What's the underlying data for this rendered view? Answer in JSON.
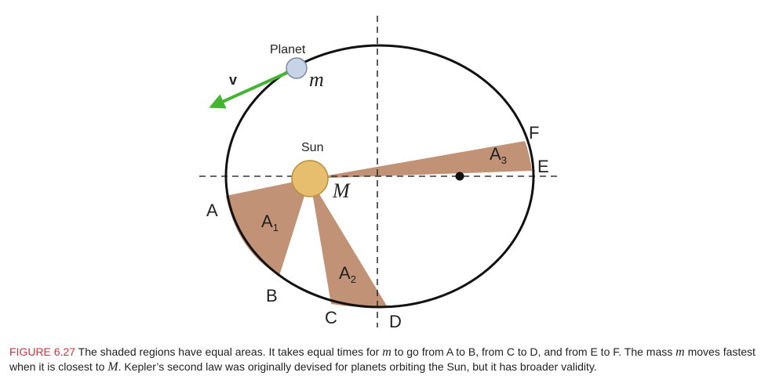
{
  "diagram": {
    "labels": {
      "planet": "Planet",
      "sun": "Sun",
      "velocity": "v",
      "mass_small": "m",
      "mass_large": "M",
      "points": {
        "a": "A",
        "b": "B",
        "c": "C",
        "d": "D",
        "e": "E",
        "f": "F"
      },
      "areas": {
        "a1": {
          "base": "A",
          "sub": "1"
        },
        "a2": {
          "base": "A",
          "sub": "2"
        },
        "a3": {
          "base": "A",
          "sub": "3"
        }
      }
    },
    "colors": {
      "orbit": "#111111",
      "shaded_region": "#c19276",
      "sun_fill": "#e6be6e",
      "sun_stroke": "#b8913a",
      "planet_fill": "#c7d3e6",
      "planet_stroke": "#7c8aa0",
      "velocity_arrow": "#45b433",
      "axis_dashes": "#333333"
    }
  },
  "caption": {
    "figure_label": "FIGURE 6.27",
    "text_1": " The shaded regions have equal areas. It takes equal times for ",
    "m1": "m",
    "text_2": " to go from A to B, from C to D, and from E to F. The mass ",
    "m2": "m",
    "text_3": " moves fastest when it is closest to ",
    "M": "M",
    "text_4": ". Kepler’s second law was originally devised for planets orbiting the Sun, but it has broader validity."
  }
}
